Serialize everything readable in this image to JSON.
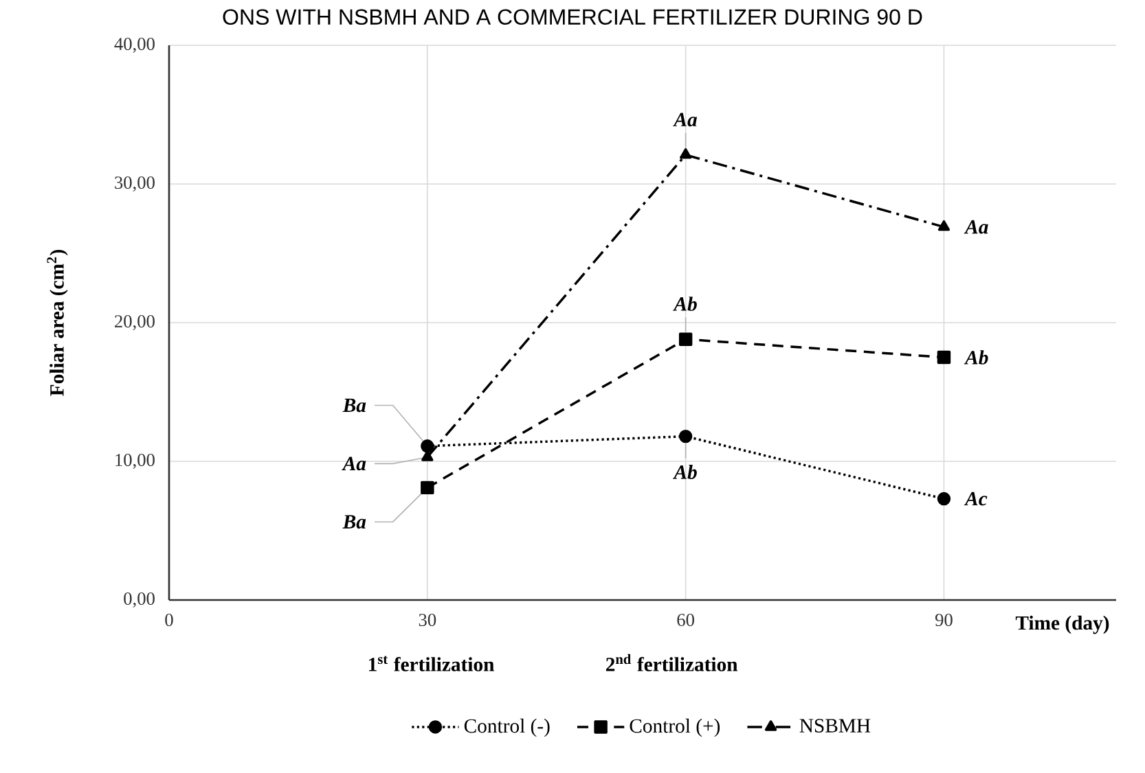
{
  "chart_data": {
    "type": "line",
    "title": "ONS WITH NSBMH AND A COMMERCIAL FERTILIZER DURING 90 D",
    "xlabel": "Time (day)",
    "ylabel": "Foliar area (cm$^{2}$)",
    "x": [
      30,
      60,
      90
    ],
    "series": [
      {
        "name": "Control (-)",
        "color": "#000000",
        "values": [
          11.1,
          11.8,
          7.3
        ],
        "marker": "circle",
        "line_style": "dotted"
      },
      {
        "name": "Control (+)",
        "color": "#000000",
        "values": [
          8.1,
          18.8,
          17.5
        ],
        "marker": "square",
        "line_style": "dashed"
      },
      {
        "name": "NSBMH",
        "color": "#000000",
        "values": [
          10.3,
          32.1,
          26.9
        ],
        "marker": "triangle",
        "line_style": "dashdot"
      }
    ],
    "xlim": [
      0,
      110
    ],
    "xticks": [
      0,
      30,
      60,
      90
    ],
    "ylim": [
      0,
      40
    ],
    "yticks": [
      {
        "value": 0,
        "label": "0,00"
      },
      {
        "value": 10,
        "label": "10,00"
      },
      {
        "value": 20,
        "label": "20,00"
      },
      {
        "value": 30,
        "label": "30,00"
      },
      {
        "value": 40,
        "label": "40,00"
      }
    ],
    "grid": true,
    "legend": "bottom",
    "annotations": [
      {
        "text": "Ba",
        "x": 30,
        "y": 11.1
      },
      {
        "text": "Ba",
        "x": 30,
        "y": 8.1
      },
      {
        "text": "Aa",
        "x": 30,
        "y": 10.3
      },
      {
        "text": "Ab",
        "x": 60,
        "y": 11.8
      },
      {
        "text": "Ab",
        "x": 60,
        "y": 18.8
      },
      {
        "text": "Aa",
        "x": 60,
        "y": 32.1
      },
      {
        "text": "Ac",
        "x": 90,
        "y": 7.3
      },
      {
        "text": "Ab",
        "x": 90,
        "y": 17.5
      },
      {
        "text": "Aa",
        "x": 90,
        "y": 26.9
      },
      "1$^{st}$ fertilization",
      "2$^{nd}$ fertilization"
    ]
  }
}
